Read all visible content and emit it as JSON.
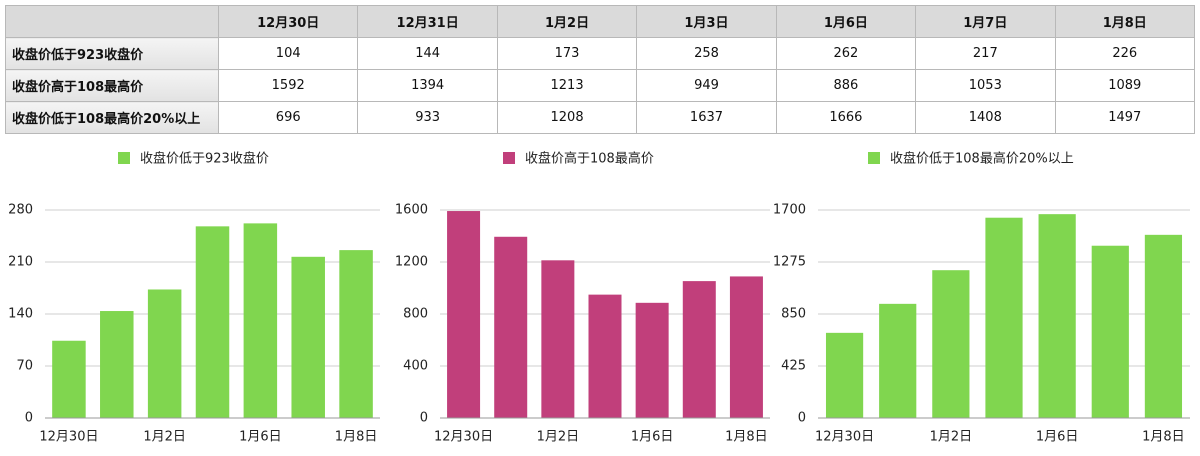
{
  "table": {
    "header": [
      "12月30日",
      "12月31日",
      "1月2日",
      "1月3日",
      "1月6日",
      "1月7日",
      "1月8日"
    ],
    "rows": [
      [
        "收盘价低于923收盘价",
        "104",
        "144",
        "173",
        "258",
        "262",
        "217",
        "226"
      ],
      [
        "收盘价高于108最高价",
        "1592",
        "1394",
        "1213",
        "949",
        "886",
        "1053",
        "1089"
      ],
      [
        "收盘价低于108最高价20%以上",
        "696",
        "933",
        "1208",
        "1637",
        "1666",
        "1408",
        "1497"
      ]
    ]
  },
  "chart_data": [
    {
      "type": "bar",
      "categories": [
        "12月30日",
        null,
        "1月2日",
        null,
        "1月6日",
        null,
        "1月8日"
      ],
      "series": [
        {
          "name": "收盘价低于923收盘价",
          "color": "#80d64f",
          "values": [
            104,
            144,
            173,
            258,
            262,
            217,
            226
          ]
        }
      ],
      "ylim": [
        0,
        280
      ],
      "yticks": [
        0,
        70,
        140,
        210,
        280
      ],
      "grid": true
    },
    {
      "type": "bar",
      "categories": [
        "12月30日",
        null,
        "1月2日",
        null,
        "1月6日",
        null,
        "1月8日"
      ],
      "series": [
        {
          "name": "收盘价高于108最高价",
          "color": "#c13f7b",
          "values": [
            1592,
            1394,
            1213,
            949,
            886,
            1053,
            1089
          ]
        }
      ],
      "ylim": [
        0,
        1600
      ],
      "yticks": [
        0,
        400,
        800,
        1200,
        1600
      ],
      "grid": true
    },
    {
      "type": "bar",
      "categories": [
        "12月30日",
        null,
        "1月2日",
        null,
        "1月6日",
        null,
        "1月8日"
      ],
      "series": [
        {
          "name": "收盘价低于108最高价20%以上",
          "color": "#80d64f",
          "values": [
            696,
            933,
            1208,
            1637,
            1666,
            1408,
            1497
          ]
        }
      ],
      "ylim": [
        0,
        1700
      ],
      "yticks": [
        0,
        425,
        850,
        1275,
        1700
      ],
      "grid": true
    }
  ]
}
